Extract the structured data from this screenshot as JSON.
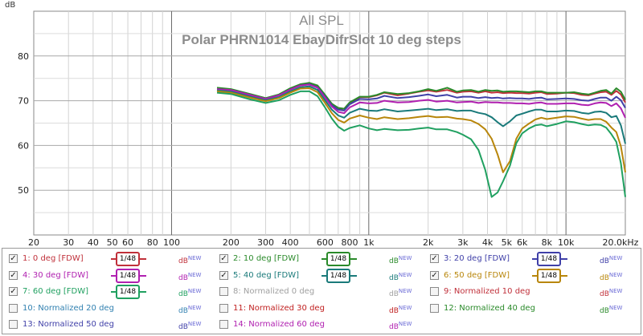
{
  "chart_data": {
    "type": "line",
    "title": "All SPL",
    "subtitle": "Polar PHRN1014  EbayDifrSlot  10 deg steps",
    "ylabel": "dB",
    "xlabel": "",
    "x_scale": "log",
    "xlim": [
      20,
      20000
    ],
    "ylim": [
      40,
      90
    ],
    "x_ticks": [
      {
        "v": 20,
        "t": "20"
      },
      {
        "v": 30,
        "t": "30"
      },
      {
        "v": 40,
        "t": "40"
      },
      {
        "v": 50,
        "t": "50"
      },
      {
        "v": 60,
        "t": "60"
      },
      {
        "v": 80,
        "t": "80"
      },
      {
        "v": 100,
        "t": "100"
      },
      {
        "v": 200,
        "t": "200"
      },
      {
        "v": 300,
        "t": "300"
      },
      {
        "v": 400,
        "t": "400"
      },
      {
        "v": 600,
        "t": "600"
      },
      {
        "v": 800,
        "t": "800"
      },
      {
        "v": 1000,
        "t": "1k"
      },
      {
        "v": 2000,
        "t": "2k"
      },
      {
        "v": 3000,
        "t": "3k"
      },
      {
        "v": 4000,
        "t": "4k"
      },
      {
        "v": 5000,
        "t": "5k"
      },
      {
        "v": 6000,
        "t": "6k"
      },
      {
        "v": 8000,
        "t": "8k"
      },
      {
        "v": 10000,
        "t": "10k"
      },
      {
        "v": 20000,
        "t": "20.0kHz"
      }
    ],
    "y_ticks": [
      50,
      60,
      70,
      80
    ],
    "grid": true,
    "legend": "bottom",
    "x": [
      170,
      200,
      250,
      300,
      350,
      400,
      450,
      500,
      550,
      600,
      650,
      700,
      750,
      800,
      900,
      1000,
      1100,
      1200,
      1400,
      1600,
      1800,
      2000,
      2200,
      2500,
      2800,
      3000,
      3300,
      3600,
      3900,
      4200,
      4500,
      4800,
      5200,
      5600,
      6000,
      6500,
      7000,
      7500,
      8000,
      9000,
      10000,
      11000,
      12000,
      13000,
      14000,
      15000,
      16000,
      17000,
      18000,
      19000,
      20000
    ],
    "series": [
      {
        "name": "1: 0 deg [FDW]",
        "color": "#c0303a",
        "values": [
          72.5,
          72.3,
          71.3,
          70.5,
          71.3,
          72.6,
          73.5,
          73.8,
          73.2,
          71.2,
          69.3,
          68.3,
          68.2,
          69.5,
          70.8,
          70.8,
          71.2,
          71.8,
          71.2,
          71.6,
          72.0,
          72.3,
          72.0,
          72.4,
          71.8,
          72.0,
          72.1,
          71.8,
          72.1,
          71.8,
          71.9,
          71.7,
          71.8,
          71.7,
          71.7,
          71.6,
          71.8,
          71.9,
          71.5,
          71.6,
          71.8,
          71.7,
          71.3,
          71.2,
          71.6,
          71.9,
          72.0,
          71.3,
          72.2,
          71.4,
          69.6
        ]
      },
      {
        "name": "2: 10 deg [FDW]",
        "color": "#2a8a2a",
        "values": [
          72.9,
          72.6,
          71.5,
          70.6,
          71.4,
          72.8,
          73.7,
          74.0,
          73.4,
          71.3,
          69.3,
          68.4,
          68.2,
          69.6,
          70.9,
          70.9,
          71.3,
          71.9,
          71.5,
          71.7,
          72.1,
          72.6,
          72.2,
          72.9,
          72.0,
          72.3,
          72.4,
          72.0,
          72.4,
          72.2,
          72.3,
          72.0,
          72.1,
          72.1,
          72.0,
          71.9,
          72.1,
          72.1,
          71.8,
          71.8,
          71.8,
          71.9,
          71.6,
          71.4,
          71.8,
          72.2,
          72.4,
          71.6,
          72.8,
          72.0,
          70.2
        ]
      },
      {
        "name": "3: 20 deg [FDW]",
        "color": "#4040a8",
        "values": [
          72.4,
          72.2,
          71.2,
          70.4,
          71.2,
          72.5,
          73.4,
          73.7,
          73.0,
          70.9,
          69.0,
          68.0,
          67.8,
          69.2,
          70.4,
          70.3,
          70.5,
          71.1,
          70.6,
          70.8,
          71.1,
          71.4,
          71.0,
          71.3,
          70.7,
          70.9,
          70.9,
          70.6,
          70.8,
          70.6,
          70.7,
          70.5,
          70.6,
          70.5,
          70.5,
          70.4,
          70.6,
          70.7,
          70.3,
          70.4,
          70.5,
          70.4,
          70.1,
          70.0,
          70.4,
          70.7,
          70.7,
          70.0,
          70.9,
          70.1,
          68.4
        ]
      },
      {
        "name": "4: 30 deg [FDW]",
        "color": "#b020b0",
        "values": [
          72.6,
          72.4,
          71.3,
          70.4,
          71.2,
          72.5,
          73.4,
          73.6,
          72.9,
          70.7,
          68.7,
          67.5,
          67.2,
          68.5,
          69.6,
          69.4,
          69.5,
          70.0,
          69.6,
          69.7,
          70.0,
          70.2,
          69.8,
          70.0,
          69.6,
          69.7,
          69.8,
          69.5,
          69.7,
          69.6,
          69.6,
          69.5,
          69.5,
          69.4,
          69.4,
          69.3,
          69.5,
          69.6,
          69.3,
          69.3,
          69.4,
          69.4,
          69.1,
          69.0,
          69.4,
          69.6,
          69.5,
          68.8,
          69.4,
          68.3,
          66.2
        ]
      },
      {
        "name": "5: 40 deg [FDW]",
        "color": "#1a7a7a",
        "values": [
          72.3,
          72.0,
          70.9,
          70.1,
          70.8,
          72.1,
          73.0,
          73.2,
          72.4,
          70.1,
          68.0,
          66.7,
          66.2,
          67.3,
          68.2,
          67.8,
          67.7,
          68.1,
          67.6,
          67.8,
          68.0,
          68.2,
          67.9,
          68.1,
          67.7,
          67.8,
          67.8,
          67.3,
          67.0,
          66.3,
          65.2,
          64.3,
          65.4,
          66.7,
          67.1,
          67.6,
          68.0,
          68.0,
          67.6,
          67.6,
          67.8,
          67.7,
          67.3,
          67.1,
          67.5,
          67.6,
          67.3,
          66.3,
          66.6,
          64.5,
          60.4
        ]
      },
      {
        "name": "6: 50 deg [FDW]",
        "color": "#b8860b",
        "values": [
          72.1,
          71.8,
          70.7,
          69.9,
          70.6,
          71.8,
          72.7,
          72.8,
          71.9,
          69.5,
          67.2,
          65.7,
          65.1,
          66.0,
          66.7,
          66.2,
          65.9,
          66.3,
          65.9,
          66.1,
          66.4,
          66.6,
          66.3,
          66.4,
          66.0,
          65.9,
          65.6,
          64.8,
          63.6,
          61.5,
          58.0,
          54.0,
          56.5,
          61.5,
          63.8,
          64.9,
          65.8,
          66.2,
          65.9,
          66.2,
          66.5,
          66.4,
          66.0,
          65.7,
          65.9,
          65.9,
          65.3,
          64.0,
          63.0,
          59.8,
          54.0
        ]
      },
      {
        "name": "7: 60 deg [FDW]",
        "color": "#20a060",
        "values": [
          71.8,
          71.5,
          70.3,
          69.5,
          70.1,
          71.3,
          72.1,
          72.1,
          71.0,
          68.5,
          66.0,
          64.2,
          63.3,
          63.9,
          64.5,
          63.8,
          63.4,
          63.7,
          63.4,
          63.5,
          63.8,
          64.0,
          63.6,
          63.6,
          63.0,
          62.4,
          61.4,
          59.0,
          54.5,
          48.5,
          49.5,
          52.0,
          55.5,
          60.5,
          62.7,
          63.8,
          64.5,
          64.7,
          64.3,
          64.8,
          65.4,
          65.2,
          64.8,
          64.5,
          64.7,
          64.6,
          64.0,
          62.5,
          60.8,
          56.0,
          48.5
        ]
      }
    ]
  },
  "legend": {
    "smoothing": "1/48",
    "db_label": "dB",
    "db_sup": "NEW",
    "items": [
      {
        "label": "1: 0 deg [FDW]",
        "color": "#c0303a",
        "checked": true,
        "smoothing": true
      },
      {
        "label": "2: 10 deg [FDW]",
        "color": "#2a8a2a",
        "checked": true,
        "smoothing": true
      },
      {
        "label": "3: 20 deg [FDW]",
        "color": "#4040a8",
        "checked": true,
        "smoothing": true
      },
      {
        "label": "4: 30 deg [FDW]",
        "color": "#b020b0",
        "checked": true,
        "smoothing": true
      },
      {
        "label": "5: 40 deg [FDW]",
        "color": "#1a7a7a",
        "checked": true,
        "smoothing": true
      },
      {
        "label": "6: 50 deg [FDW]",
        "color": "#b8860b",
        "checked": true,
        "smoothing": true
      },
      {
        "label": "7: 60 deg [FDW]",
        "color": "#20a060",
        "checked": true,
        "smoothing": true
      },
      {
        "label": "8: Normalized 0 deg",
        "color": "#a0a0a0",
        "checked": false,
        "smoothing": false
      },
      {
        "label": "9: Normalized 10 deg",
        "color": "#c0303a",
        "checked": false,
        "smoothing": false
      },
      {
        "label": "10: Normalized 20 deg",
        "color": "#3080b0",
        "checked": false,
        "smoothing": false
      },
      {
        "label": "11: Normalized 30 deg",
        "color": "#c02020",
        "checked": false,
        "smoothing": false
      },
      {
        "label": "12: Normalized 40 deg",
        "color": "#2a8a2a",
        "checked": false,
        "smoothing": false
      },
      {
        "label": "13: Normalized 50 deg",
        "color": "#4040a8",
        "checked": false,
        "smoothing": false
      },
      {
        "label": "14: Normalized 60 deg",
        "color": "#b020b0",
        "checked": false,
        "smoothing": false
      }
    ]
  }
}
